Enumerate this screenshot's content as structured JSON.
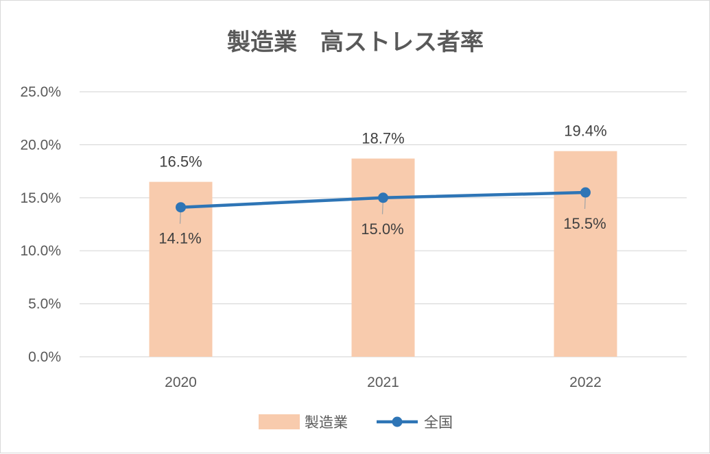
{
  "chart_data": {
    "type": "bar",
    "title": "製造業　高ストレス者率",
    "categories": [
      "2020",
      "2021",
      "2022"
    ],
    "series": [
      {
        "name": "製造業",
        "type": "bar",
        "values": [
          16.5,
          18.7,
          19.4
        ],
        "labels": [
          "16.5%",
          "18.7%",
          "19.4%"
        ],
        "color": "#f8cbad"
      },
      {
        "name": "全国",
        "type": "line",
        "values": [
          14.1,
          15.0,
          15.5
        ],
        "labels": [
          "14.1%",
          "15.0%",
          "15.5%"
        ],
        "color": "#2e75b6"
      }
    ],
    "y_ticks": [
      "0.0%",
      "5.0%",
      "10.0%",
      "15.0%",
      "20.0%",
      "25.0%"
    ],
    "ylim": [
      0,
      25
    ],
    "grid": true,
    "legend_position": "bottom"
  }
}
